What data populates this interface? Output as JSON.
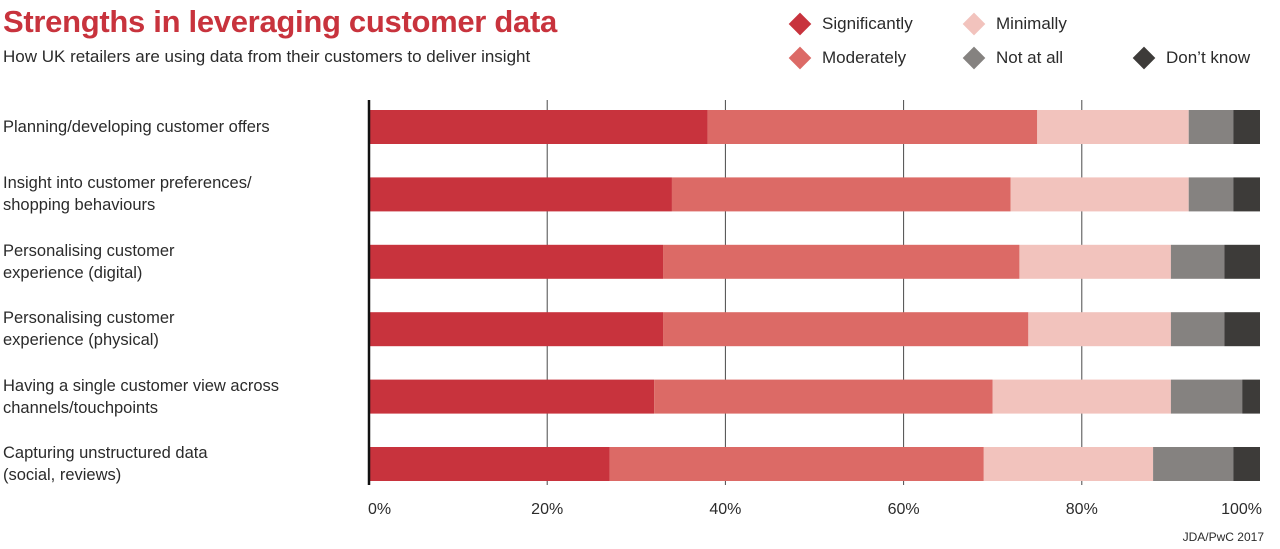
{
  "chart_data": {
    "type": "bar",
    "orientation": "horizontal",
    "stacked": true,
    "title": "Strengths in leveraging customer data",
    "subtitle": "How UK retailers are using data from their customers to deliver insight",
    "categories": [
      "Planning/developing customer offers",
      "Insight into customer preferences/ shopping behaviours",
      "Personalising customer experience (digital)",
      "Personalising customer experience (physical)",
      "Having a single customer view across channels/touchpoints",
      "Capturing unstructured data (social, reviews)"
    ],
    "category_lines": [
      [
        "Planning/developing customer offers"
      ],
      [
        "Insight into customer preferences/",
        "shopping behaviours"
      ],
      [
        "Personalising customer",
        "experience (digital)"
      ],
      [
        "Personalising customer",
        "experience (physical)"
      ],
      [
        "Having a single customer view across",
        "channels/touchpoints"
      ],
      [
        "Capturing unstructured data",
        "(social, reviews)"
      ]
    ],
    "series": [
      {
        "name": "Significantly",
        "color": "#c8333d",
        "values": [
          38,
          34,
          33,
          33,
          32,
          27
        ]
      },
      {
        "name": "Moderately",
        "color": "#dc6a66",
        "values": [
          37,
          38,
          40,
          41,
          38,
          42
        ]
      },
      {
        "name": "Minimally",
        "color": "#f2c3bd",
        "values": [
          17,
          20,
          17,
          16,
          20,
          19
        ]
      },
      {
        "name": "Not at all",
        "color": "#858280",
        "values": [
          5,
          5,
          6,
          6,
          8,
          9
        ]
      },
      {
        "name": "Don’t know",
        "color": "#3d3b39",
        "values": [
          3,
          3,
          4,
          4,
          2,
          3
        ]
      }
    ],
    "xlim": [
      0,
      100
    ],
    "xticks": [
      "0%",
      "20%",
      "40%",
      "60%",
      "80%",
      "100%"
    ],
    "grid": true,
    "legend_position": "top-right",
    "source": "JDA/PwC 2017"
  }
}
